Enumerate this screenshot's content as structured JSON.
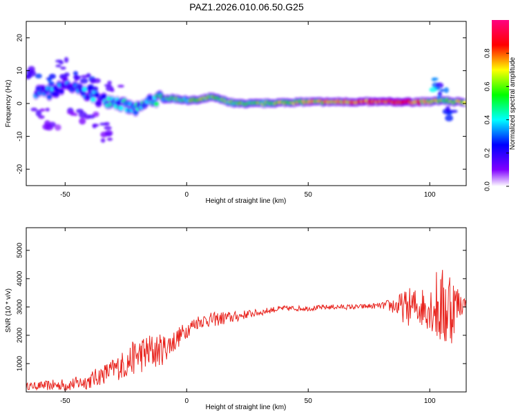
{
  "title": "PAZ1.2026.010.06.50.G25",
  "chart_data": [
    {
      "type": "heatmap",
      "xlabel": "Height of straight line (km)",
      "ylabel": "Frequency (Hz)",
      "xlim": [
        -66,
        115
      ],
      "ylim": [
        -25,
        25
      ],
      "xticks": [
        -50,
        0,
        50,
        100
      ],
      "yticks": [
        -20,
        -10,
        0,
        10,
        20
      ],
      "colorbar": {
        "label": "Normalized spectral amplitude",
        "range": [
          0,
          1
        ],
        "ticks": [
          0.0,
          0.2,
          0.4,
          0.6,
          0.8
        ],
        "colors": [
          "#ffffff",
          "#8000ff",
          "#0000ff",
          "#00ffff",
          "#00ff00",
          "#ffff00",
          "#ff0000",
          "#ff0080"
        ]
      },
      "ridge": [
        {
          "x": -62,
          "y": 4,
          "v": 0.25
        },
        {
          "x": -55,
          "y": 3,
          "v": 0.3
        },
        {
          "x": -50,
          "y": 6,
          "v": 0.25
        },
        {
          "x": -45,
          "y": 4,
          "v": 0.3
        },
        {
          "x": -40,
          "y": 3,
          "v": 0.3
        },
        {
          "x": -35,
          "y": 1,
          "v": 0.3
        },
        {
          "x": -30,
          "y": 1,
          "v": 0.35
        },
        {
          "x": -25,
          "y": -1,
          "v": 0.35
        },
        {
          "x": -20,
          "y": -2,
          "v": 0.35
        },
        {
          "x": -15,
          "y": 1,
          "v": 0.4
        },
        {
          "x": -10,
          "y": 1.5,
          "v": 0.45
        },
        {
          "x": -5,
          "y": 1.5,
          "v": 0.5
        },
        {
          "x": 0,
          "y": 1,
          "v": 0.5
        },
        {
          "x": 5,
          "y": 1,
          "v": 0.55
        },
        {
          "x": 10,
          "y": 2,
          "v": 0.55
        },
        {
          "x": 15,
          "y": 1,
          "v": 0.55
        },
        {
          "x": 20,
          "y": 0,
          "v": 0.55
        },
        {
          "x": 30,
          "y": 0,
          "v": 0.55
        },
        {
          "x": 40,
          "y": 0.3,
          "v": 0.6
        },
        {
          "x": 50,
          "y": 0.5,
          "v": 0.65
        },
        {
          "x": 60,
          "y": 0.5,
          "v": 0.7
        },
        {
          "x": 70,
          "y": 0.5,
          "v": 0.8
        },
        {
          "x": 80,
          "y": 0.5,
          "v": 0.85
        },
        {
          "x": 90,
          "y": 0.5,
          "v": 0.85
        },
        {
          "x": 100,
          "y": 0.5,
          "v": 0.7
        },
        {
          "x": 105,
          "y": 1,
          "v": 0.55
        },
        {
          "x": 110,
          "y": 0.5,
          "v": 0.6
        },
        {
          "x": 115,
          "y": 0.5,
          "v": 0.7
        }
      ],
      "blobs": [
        {
          "x": -63,
          "y": 9,
          "v": 0.2
        },
        {
          "x": -58,
          "y": 7,
          "v": 0.25
        },
        {
          "x": -52,
          "y": 12,
          "v": 0.2
        },
        {
          "x": -48,
          "y": 9,
          "v": 0.25
        },
        {
          "x": -43,
          "y": 8,
          "v": 0.2
        },
        {
          "x": -38,
          "y": 6,
          "v": 0.25
        },
        {
          "x": -45,
          "y": -3,
          "v": 0.15
        },
        {
          "x": -40,
          "y": -4,
          "v": 0.15
        },
        {
          "x": -35,
          "y": -6,
          "v": 0.15
        },
        {
          "x": -60,
          "y": -3,
          "v": 0.15
        },
        {
          "x": -55,
          "y": -6,
          "v": 0.12
        },
        {
          "x": -33,
          "y": -10,
          "v": 0.12
        },
        {
          "x": -30,
          "y": 5,
          "v": 0.15
        },
        {
          "x": 103,
          "y": 6,
          "v": 0.3
        },
        {
          "x": 108,
          "y": -3,
          "v": 0.25
        },
        {
          "x": 104,
          "y": 3,
          "v": 0.35
        }
      ]
    },
    {
      "type": "line",
      "xlabel": "Height of straight line (km)",
      "ylabel": "SNR (10 * v/v)",
      "xlim": [
        -66,
        115
      ],
      "ylim": [
        0,
        5800
      ],
      "xticks": [
        -50,
        0,
        50,
        100
      ],
      "yticks": [
        1000,
        2000,
        3000,
        4000,
        5000
      ],
      "series": [
        {
          "color": "#e8231d",
          "x": [
            -66,
            -60,
            -55,
            -50,
            -45,
            -40,
            -35,
            -30,
            -25,
            -22,
            -20,
            -15,
            -10,
            -5,
            0,
            5,
            10,
            15,
            20,
            25,
            30,
            35,
            40,
            50,
            60,
            70,
            80,
            85,
            88,
            92,
            95,
            100,
            103,
            106,
            108,
            110,
            115
          ],
          "y": [
            200,
            220,
            230,
            250,
            300,
            400,
            600,
            800,
            1000,
            1200,
            1300,
            1400,
            1500,
            1800,
            2200,
            2500,
            2550,
            2600,
            2650,
            2750,
            2800,
            2900,
            2950,
            2950,
            3000,
            3000,
            3050,
            3050,
            3000,
            3000,
            3000,
            3000,
            3000,
            2900,
            3000,
            3050,
            3150
          ],
          "noise": [
            120,
            150,
            200,
            230,
            250,
            300,
            350,
            400,
            550,
            600,
            650,
            700,
            550,
            400,
            300,
            250,
            250,
            250,
            200,
            150,
            120,
            110,
            100,
            90,
            90,
            90,
            100,
            300,
            500,
            700,
            700,
            800,
            1400,
            1500,
            1800,
            1000,
            100
          ]
        }
      ]
    }
  ]
}
